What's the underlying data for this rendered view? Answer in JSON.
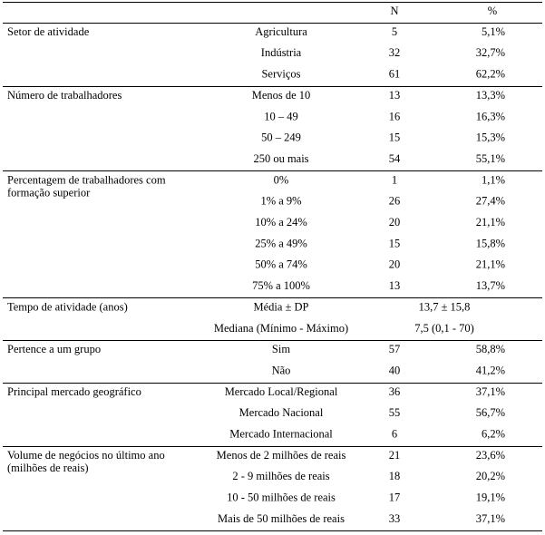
{
  "header": {
    "n": "N",
    "pct": "%"
  },
  "sections": [
    {
      "label": [
        "Setor de atividade"
      ],
      "rows": [
        {
          "category": "Agricultura",
          "n": 5,
          "pct": "5,1%"
        },
        {
          "category": "Indústria",
          "n": 32,
          "pct": "32,7%"
        },
        {
          "category": "Serviços",
          "n": 61,
          "pct": "62,2%"
        }
      ]
    },
    {
      "label": [
        "Número de trabalhadores"
      ],
      "rows": [
        {
          "category": "Menos de 10",
          "n": 13,
          "pct": "13,3%"
        },
        {
          "category": "10 – 49",
          "n": 16,
          "pct": "16,3%"
        },
        {
          "category": "50 – 249",
          "n": 15,
          "pct": "15,3%"
        },
        {
          "category": "250 ou mais",
          "n": 54,
          "pct": "55,1%"
        }
      ]
    },
    {
      "label": [
        "Percentagem de trabalhadores com",
        "formação superior"
      ],
      "rows": [
        {
          "category": "0%",
          "n": 1,
          "pct": "1,1%"
        },
        {
          "category": "1% a 9%",
          "n": 26,
          "pct": "27,4%"
        },
        {
          "category": "10% a 24%",
          "n": 20,
          "pct": "21,1%"
        },
        {
          "category": "25% a 49%",
          "n": 15,
          "pct": "15,8%"
        },
        {
          "category": "50% a 74%",
          "n": 20,
          "pct": "21,1%"
        },
        {
          "category": "75% a 100%",
          "n": 13,
          "pct": "13,7%"
        }
      ]
    },
    {
      "label": [
        "Tempo de atividade (anos)"
      ],
      "rows": [
        {
          "category": "Média ± DP",
          "value": "13,7 ± 15,8"
        },
        {
          "category": "Mediana (Mínimo - Máximo)",
          "value": "7,5 (0,1 - 70)"
        }
      ]
    },
    {
      "label": [
        "Pertence a um grupo"
      ],
      "rows": [
        {
          "category": "Sim",
          "n": 57,
          "pct": "58,8%"
        },
        {
          "category": "Não",
          "n": 40,
          "pct": "41,2%"
        }
      ]
    },
    {
      "label": [
        "Principal mercado geográfico"
      ],
      "rows": [
        {
          "category": "Mercado Local/Regional",
          "n": 36,
          "pct": "37,1%"
        },
        {
          "category": "Mercado Nacional",
          "n": 55,
          "pct": "56,7%"
        },
        {
          "category": "Mercado Internacional",
          "n": 6,
          "pct": "6,2%"
        }
      ]
    },
    {
      "label": [
        "Volume de negócios no último ano",
        "(milhões de reais)"
      ],
      "rows": [
        {
          "category": "Menos de 2 milhões de reais",
          "n": 21,
          "pct": "23,6%"
        },
        {
          "category": "2 - 9 milhões de reais",
          "n": 18,
          "pct": "20,2%"
        },
        {
          "category": "10 - 50 milhões de reais",
          "n": 17,
          "pct": "19,1%"
        },
        {
          "category": "Mais de 50 milhões de reais",
          "n": 33,
          "pct": "37,1%"
        }
      ]
    }
  ]
}
